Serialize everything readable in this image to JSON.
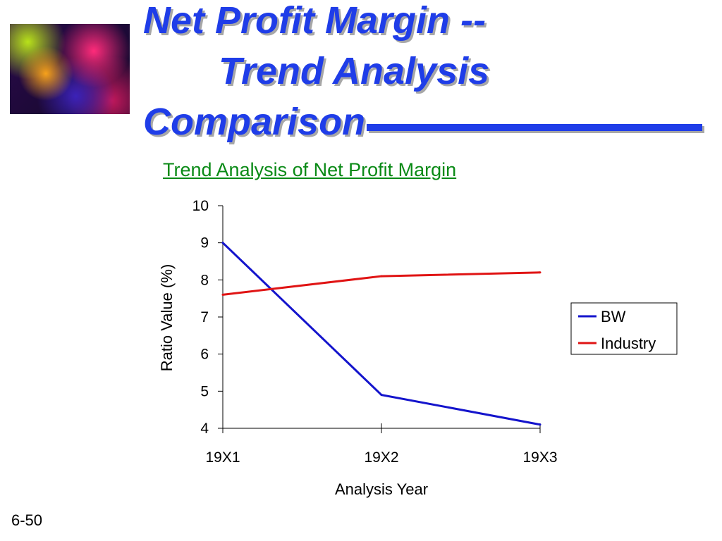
{
  "slide": {
    "title_line1": "Net Profit Margin --",
    "title_line2": "Trend Analysis",
    "title_line3": "Comparison",
    "page_number": "6-50",
    "title_color": "#1f3de8"
  },
  "chart_data": {
    "type": "line",
    "title": "Trend Analysis of Net Profit Margin",
    "xlabel": "Analysis Year",
    "ylabel": "Ratio Value (%)",
    "categories": [
      "19X1",
      "19X2",
      "19X3"
    ],
    "ylim": [
      4,
      10
    ],
    "yticks": [
      4,
      5,
      6,
      7,
      8,
      9,
      10
    ],
    "grid": false,
    "legend_position": "right",
    "series": [
      {
        "name": "BW",
        "values": [
          9.0,
          4.9,
          4.1
        ],
        "color": "#1414cc"
      },
      {
        "name": "Industry",
        "values": [
          7.6,
          8.1,
          8.2
        ],
        "color": "#e01414"
      }
    ]
  }
}
